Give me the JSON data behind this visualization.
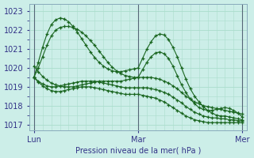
{
  "bg_color": "#cceee8",
  "grid_color": "#aaddcc",
  "line_color": "#1a6620",
  "marker_color": "#1a6620",
  "xlabel": "Pression niveau de la mer( hPa )",
  "xlabel_color": "#333388",
  "tick_color": "#333388",
  "ylim": [
    1016.7,
    1023.4
  ],
  "yticks": [
    1017,
    1018,
    1019,
    1020,
    1021,
    1022,
    1023
  ],
  "xtick_labels": [
    "Lun",
    "Mar",
    "Mer"
  ],
  "xtick_positions": [
    0,
    24,
    48
  ],
  "vline_positions": [
    0,
    24,
    48
  ],
  "n_points": 49,
  "series": [
    [
      1019.5,
      1020.0,
      1020.6,
      1021.2,
      1021.7,
      1022.0,
      1022.15,
      1022.2,
      1022.2,
      1022.15,
      1022.05,
      1021.9,
      1021.7,
      1021.45,
      1021.2,
      1020.9,
      1020.6,
      1020.3,
      1020.05,
      1019.85,
      1019.7,
      1019.6,
      1019.55,
      1019.5,
      1019.5,
      1019.9,
      1020.3,
      1020.6,
      1020.8,
      1020.85,
      1020.75,
      1020.5,
      1020.1,
      1019.6,
      1019.1,
      1018.7,
      1018.35,
      1018.1,
      1017.9,
      1017.8,
      1017.75,
      1017.75,
      1017.8,
      1017.85,
      1017.9,
      1017.85,
      1017.75,
      1017.6,
      1017.4
    ],
    [
      1019.5,
      1020.3,
      1021.1,
      1021.8,
      1022.3,
      1022.55,
      1022.65,
      1022.6,
      1022.45,
      1022.2,
      1021.9,
      1021.55,
      1021.2,
      1020.85,
      1020.55,
      1020.3,
      1020.1,
      1019.95,
      1019.85,
      1019.8,
      1019.8,
      1019.85,
      1019.9,
      1019.95,
      1020.0,
      1020.5,
      1021.0,
      1021.4,
      1021.7,
      1021.8,
      1021.75,
      1021.5,
      1021.1,
      1020.6,
      1020.0,
      1019.4,
      1018.9,
      1018.5,
      1018.2,
      1017.95,
      1017.75,
      1017.6,
      1017.5,
      1017.45,
      1017.45,
      1017.4,
      1017.35,
      1017.3,
      1017.25
    ],
    [
      1019.5,
      1019.3,
      1019.15,
      1019.05,
      1019.0,
      1019.0,
      1019.05,
      1019.1,
      1019.15,
      1019.2,
      1019.25,
      1019.3,
      1019.3,
      1019.3,
      1019.3,
      1019.25,
      1019.2,
      1019.15,
      1019.1,
      1019.05,
      1019.0,
      1018.95,
      1018.95,
      1018.95,
      1018.95,
      1018.95,
      1018.95,
      1018.9,
      1018.85,
      1018.8,
      1018.7,
      1018.6,
      1018.45,
      1018.3,
      1018.15,
      1017.95,
      1017.8,
      1017.65,
      1017.55,
      1017.45,
      1017.4,
      1017.35,
      1017.35,
      1017.3,
      1017.3,
      1017.25,
      1017.25,
      1017.2,
      1017.2
    ],
    [
      1019.5,
      1019.25,
      1019.05,
      1018.9,
      1018.8,
      1018.75,
      1018.75,
      1018.8,
      1018.85,
      1018.9,
      1018.95,
      1019.0,
      1019.0,
      1019.0,
      1018.95,
      1018.9,
      1018.85,
      1018.8,
      1018.75,
      1018.7,
      1018.65,
      1018.6,
      1018.6,
      1018.6,
      1018.6,
      1018.55,
      1018.5,
      1018.45,
      1018.4,
      1018.3,
      1018.2,
      1018.05,
      1017.9,
      1017.75,
      1017.6,
      1017.45,
      1017.35,
      1017.25,
      1017.2,
      1017.15,
      1017.1,
      1017.1,
      1017.1,
      1017.1,
      1017.1,
      1017.1,
      1017.1,
      1017.1,
      1017.1
    ],
    [
      1020.1,
      1019.8,
      1019.55,
      1019.35,
      1019.2,
      1019.1,
      1019.05,
      1019.0,
      1019.0,
      1019.0,
      1019.05,
      1019.1,
      1019.15,
      1019.2,
      1019.25,
      1019.3,
      1019.3,
      1019.3,
      1019.3,
      1019.3,
      1019.3,
      1019.35,
      1019.4,
      1019.45,
      1019.5,
      1019.5,
      1019.5,
      1019.5,
      1019.45,
      1019.4,
      1019.3,
      1019.2,
      1019.05,
      1018.9,
      1018.7,
      1018.5,
      1018.35,
      1018.2,
      1018.1,
      1018.0,
      1017.95,
      1017.9,
      1017.85,
      1017.8,
      1017.75,
      1017.7,
      1017.65,
      1017.6,
      1017.55
    ]
  ]
}
